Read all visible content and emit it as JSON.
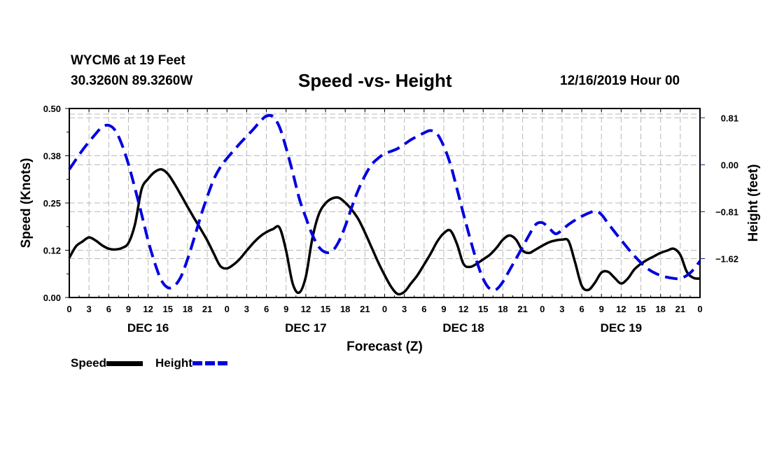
{
  "header": {
    "station": "WYCM6 at 19 Feet",
    "coordinates": "30.3260N 89.3260W",
    "title": "Speed -vs- Height",
    "date": "12/16/2019 Hour 00"
  },
  "legend": {
    "speed_label": "Speed",
    "height_label": "Height"
  },
  "chart_data": {
    "type": "line",
    "title": "Speed -vs- Height",
    "xlabel": "Forecast (Z)",
    "ylabel": "Speed (Knots)",
    "y2label": "Height (feet)",
    "xlim": [
      0,
      96
    ],
    "ylim": [
      0,
      0.5
    ],
    "y2lim": [
      -2.29,
      0.97
    ],
    "grid": true,
    "legend_position": "bottom-left",
    "x_tick_labels": [
      "0",
      "3",
      "6",
      "9",
      "12",
      "15",
      "18",
      "21",
      "0",
      "3",
      "6",
      "9",
      "12",
      "15",
      "18",
      "21",
      "0",
      "3",
      "6",
      "9",
      "12",
      "15",
      "18",
      "21",
      "0",
      "3",
      "6",
      "9",
      "12",
      "15",
      "18",
      "21",
      "0"
    ],
    "x_tick_values": [
      0,
      3,
      6,
      9,
      12,
      15,
      18,
      21,
      24,
      27,
      30,
      33,
      36,
      39,
      42,
      45,
      48,
      51,
      54,
      57,
      60,
      63,
      66,
      69,
      72,
      75,
      78,
      81,
      84,
      87,
      90,
      93,
      96
    ],
    "day_labels": [
      {
        "label": "DEC 16",
        "center_hour": 12
      },
      {
        "label": "DEC 17",
        "center_hour": 36
      },
      {
        "label": "DEC 18",
        "center_hour": 60
      },
      {
        "label": "DEC 19",
        "center_hour": 84
      }
    ],
    "y_ticks": [
      {
        "value": 0.0,
        "label": "0.00"
      },
      {
        "value": 0.125,
        "label": "0.12"
      },
      {
        "value": 0.25,
        "label": "0.25"
      },
      {
        "value": 0.375,
        "label": "0.38"
      },
      {
        "value": 0.5,
        "label": "0.50"
      }
    ],
    "y2_ticks": [
      {
        "value": 0.81,
        "label": "0.81"
      },
      {
        "value": 0.0,
        "label": "0.00"
      },
      {
        "value": -0.81,
        "label": "−0.81"
      },
      {
        "value": -1.62,
        "label": "−1.62"
      }
    ],
    "series": [
      {
        "name": "Speed",
        "axis": "left",
        "color": "#000000",
        "style": "solid",
        "x": [
          0,
          1,
          2,
          3,
          4,
          5,
          6,
          7,
          8,
          9,
          10,
          11,
          12,
          13,
          14,
          15,
          16,
          17,
          18,
          19,
          20,
          21,
          22,
          23,
          24,
          25,
          26,
          27,
          28,
          29,
          30,
          31,
          32,
          33,
          34,
          35,
          36,
          37,
          38,
          39,
          40,
          41,
          42,
          43,
          44,
          45,
          46,
          47,
          48,
          49,
          50,
          51,
          52,
          53,
          54,
          55,
          56,
          57,
          58,
          59,
          60,
          61,
          62,
          63,
          64,
          65,
          66,
          67,
          68,
          69,
          70,
          71,
          72,
          73,
          74,
          75,
          76,
          77,
          78,
          79,
          80,
          81,
          82,
          83,
          84,
          85,
          86,
          87,
          88,
          89,
          90,
          91,
          92,
          93,
          94,
          95,
          96
        ],
        "values": [
          0.105,
          0.135,
          0.148,
          0.159,
          0.151,
          0.138,
          0.129,
          0.127,
          0.131,
          0.144,
          0.194,
          0.286,
          0.314,
          0.332,
          0.339,
          0.327,
          0.301,
          0.271,
          0.24,
          0.21,
          0.181,
          0.151,
          0.116,
          0.083,
          0.077,
          0.087,
          0.103,
          0.124,
          0.144,
          0.161,
          0.173,
          0.181,
          0.185,
          0.124,
          0.037,
          0.013,
          0.055,
          0.157,
          0.221,
          0.249,
          0.262,
          0.264,
          0.251,
          0.232,
          0.207,
          0.172,
          0.133,
          0.094,
          0.059,
          0.028,
          0.009,
          0.015,
          0.037,
          0.059,
          0.087,
          0.116,
          0.148,
          0.17,
          0.177,
          0.142,
          0.089,
          0.081,
          0.089,
          0.101,
          0.113,
          0.131,
          0.153,
          0.164,
          0.153,
          0.124,
          0.118,
          0.127,
          0.137,
          0.146,
          0.151,
          0.153,
          0.149,
          0.092,
          0.031,
          0.02,
          0.039,
          0.066,
          0.068,
          0.052,
          0.037,
          0.05,
          0.074,
          0.089,
          0.1,
          0.109,
          0.118,
          0.124,
          0.129,
          0.113,
          0.068,
          0.052,
          0.05
        ]
      },
      {
        "name": "Height",
        "axis": "right",
        "color": "#0000e0",
        "style": "dashed",
        "x": [
          0,
          2,
          4,
          5,
          6,
          7,
          8,
          9,
          10,
          11,
          12,
          13,
          14,
          15,
          16,
          17,
          18,
          19,
          20,
          21,
          22,
          23,
          24,
          26,
          28,
          29,
          30,
          31,
          32,
          33,
          34,
          35,
          36,
          37,
          38,
          39,
          40,
          41,
          42,
          43,
          44,
          45,
          46,
          47,
          48,
          50,
          52,
          54,
          55,
          56,
          57,
          58,
          59,
          60,
          61,
          62,
          63,
          64,
          65,
          66,
          67,
          68,
          69,
          70,
          71,
          72,
          73,
          74,
          75,
          76,
          78,
          80,
          81,
          82,
          84,
          86,
          88,
          90,
          92,
          93,
          94,
          95,
          96
        ],
        "values": [
          -0.08,
          0.25,
          0.53,
          0.65,
          0.68,
          0.59,
          0.35,
          0.01,
          -0.41,
          -0.85,
          -1.31,
          -1.69,
          -1.99,
          -2.12,
          -2.09,
          -1.93,
          -1.63,
          -1.27,
          -0.89,
          -0.55,
          -0.25,
          -0.04,
          0.11,
          0.37,
          0.61,
          0.74,
          0.84,
          0.83,
          0.65,
          0.29,
          -0.13,
          -0.58,
          -0.91,
          -1.21,
          -1.42,
          -1.51,
          -1.49,
          -1.33,
          -1.06,
          -0.73,
          -0.43,
          -0.19,
          0.0,
          0.11,
          0.19,
          0.28,
          0.43,
          0.55,
          0.59,
          0.53,
          0.32,
          0.01,
          -0.41,
          -0.85,
          -1.27,
          -1.66,
          -1.97,
          -2.14,
          -2.15,
          -2.02,
          -1.82,
          -1.62,
          -1.42,
          -1.21,
          -1.03,
          -1.0,
          -1.09,
          -1.19,
          -1.13,
          -1.03,
          -0.89,
          -0.8,
          -0.86,
          -1.01,
          -1.3,
          -1.57,
          -1.79,
          -1.91,
          -1.96,
          -1.96,
          -1.91,
          -1.81,
          -1.66
        ]
      }
    ]
  }
}
